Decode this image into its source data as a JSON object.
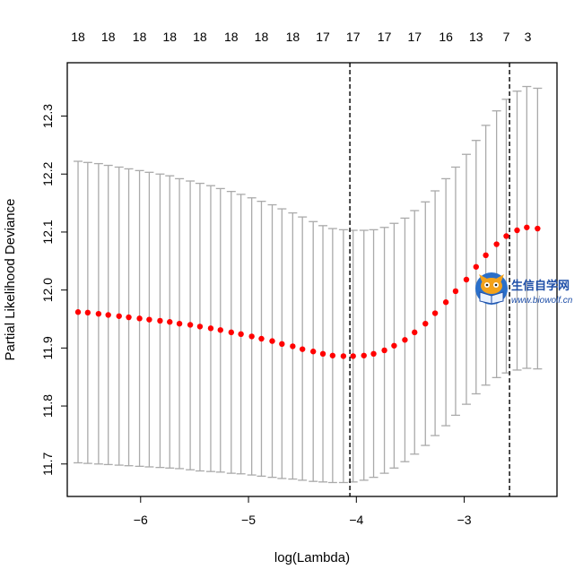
{
  "chart_data": {
    "type": "scatter",
    "xlabel": "log(Lambda)",
    "ylabel": "Partial Likelihood Deviance",
    "xlim": [
      -6.68,
      -2.14
    ],
    "ylim": [
      11.644,
      12.392
    ],
    "x_ticks": [
      -6,
      -5,
      -4,
      -3
    ],
    "x_tick_labels": [
      "−6",
      "−5",
      "−4",
      "−3"
    ],
    "y_ticks": [
      11.7,
      11.8,
      11.9,
      12.0,
      12.1,
      12.2,
      12.3
    ],
    "y_tick_labels": [
      "11.7",
      "11.8",
      "11.9",
      "12.0",
      "12.1",
      "12.2",
      "12.3"
    ],
    "top_axis": [
      {
        "x": -6.58,
        "label": "18"
      },
      {
        "x": -6.3,
        "label": "18"
      },
      {
        "x": -6.01,
        "label": "18"
      },
      {
        "x": -5.73,
        "label": "18"
      },
      {
        "x": -5.45,
        "label": "18"
      },
      {
        "x": -5.16,
        "label": "18"
      },
      {
        "x": -4.88,
        "label": "18"
      },
      {
        "x": -4.59,
        "label": "18"
      },
      {
        "x": -4.31,
        "label": "17"
      },
      {
        "x": -4.03,
        "label": "17"
      },
      {
        "x": -3.74,
        "label": "17"
      },
      {
        "x": -3.46,
        "label": "17"
      },
      {
        "x": -3.17,
        "label": "16"
      },
      {
        "x": -2.89,
        "label": "13"
      },
      {
        "x": -2.61,
        "label": "7"
      },
      {
        "x": -2.41,
        "label": "3"
      }
    ],
    "vlines": [
      -4.06,
      -2.58
    ],
    "point_color": "#ff0000",
    "errorbar_color": "#aaaaaa",
    "series": [
      {
        "x": [
          -6.58,
          -6.49,
          -6.39,
          -6.3,
          -6.2,
          -6.11,
          -6.01,
          -5.92,
          -5.82,
          -5.73,
          -5.64,
          -5.54,
          -5.45,
          -5.35,
          -5.26,
          -5.16,
          -5.07,
          -4.97,
          -4.88,
          -4.78,
          -4.69,
          -4.59,
          -4.5,
          -4.4,
          -4.31,
          -4.22,
          -4.12,
          -4.03,
          -3.93,
          -3.84,
          -3.74,
          -3.65,
          -3.55,
          -3.46,
          -3.36,
          -3.27,
          -3.17,
          -3.08,
          -2.98,
          -2.89,
          -2.8,
          -2.7,
          -2.61,
          -2.51,
          -2.42,
          -2.32
        ],
        "y": [
          11.962,
          11.961,
          11.959,
          11.957,
          11.955,
          11.953,
          11.951,
          11.949,
          11.947,
          11.945,
          11.942,
          11.94,
          11.937,
          11.934,
          11.931,
          11.927,
          11.924,
          11.92,
          11.916,
          11.912,
          11.907,
          11.903,
          11.898,
          11.894,
          11.89,
          11.887,
          11.886,
          11.886,
          11.887,
          11.89,
          11.896,
          11.904,
          11.914,
          11.927,
          11.942,
          11.96,
          11.979,
          11.998,
          12.018,
          12.04,
          12.06,
          12.079,
          12.093,
          12.103,
          12.108,
          12.106
        ],
        "lower": [
          11.702,
          11.701,
          11.7,
          11.699,
          11.698,
          11.697,
          11.696,
          11.695,
          11.694,
          11.693,
          11.692,
          11.69,
          11.688,
          11.687,
          11.686,
          11.684,
          11.683,
          11.681,
          11.679,
          11.677,
          11.675,
          11.674,
          11.672,
          11.67,
          11.669,
          11.668,
          11.668,
          11.669,
          11.672,
          11.677,
          11.684,
          11.693,
          11.704,
          11.717,
          11.732,
          11.749,
          11.766,
          11.784,
          11.803,
          11.821,
          11.836,
          11.849,
          11.857,
          11.862,
          11.865,
          11.864
        ],
        "upper": [
          12.222,
          12.22,
          12.218,
          12.215,
          12.212,
          12.209,
          12.206,
          12.203,
          12.2,
          12.197,
          12.192,
          12.188,
          12.184,
          12.18,
          12.175,
          12.17,
          12.165,
          12.159,
          12.153,
          12.147,
          12.14,
          12.133,
          12.126,
          12.118,
          12.111,
          12.106,
          12.104,
          12.103,
          12.103,
          12.104,
          12.108,
          12.115,
          12.124,
          12.137,
          12.152,
          12.171,
          12.192,
          12.212,
          12.234,
          12.258,
          12.284,
          12.309,
          12.329,
          12.343,
          12.351,
          12.348
        ]
      }
    ]
  },
  "watermark": {
    "title": "生信自学网",
    "url": "www.biowolf.cn",
    "icon": "owl-reading-book-icon"
  }
}
